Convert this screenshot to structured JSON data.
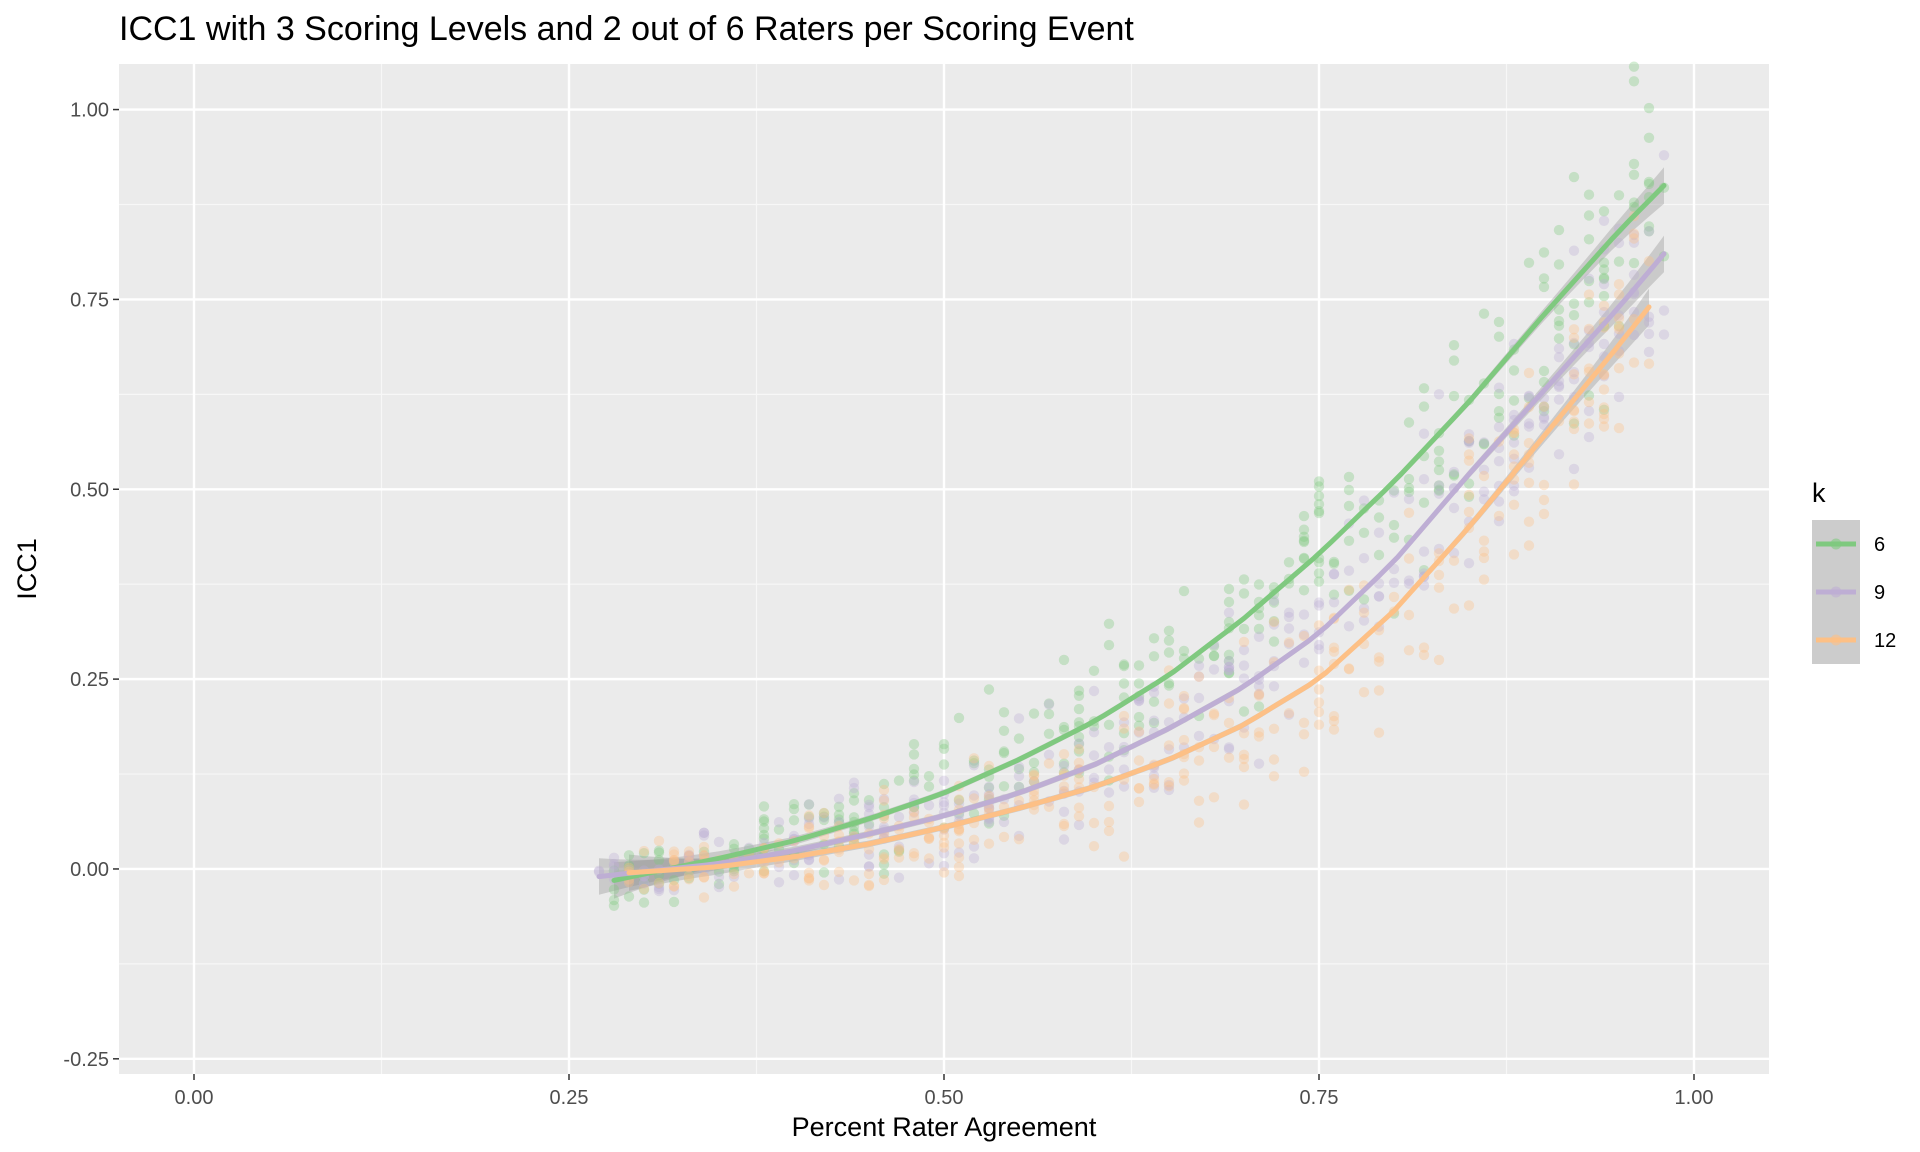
{
  "chart_data": {
    "type": "scatter",
    "title": "ICC1 with 3 Scoring Levels and 2 out of 6 Raters per Scoring Event",
    "xlabel": "Percent Rater Agreement",
    "ylabel": "ICC1",
    "xlim": [
      -0.05,
      1.05
    ],
    "ylim": [
      -0.27,
      1.06
    ],
    "x_ticks": [
      0.0,
      0.25,
      0.5,
      0.75,
      1.0
    ],
    "x_tick_labels": [
      "0.00",
      "0.25",
      "0.50",
      "0.75",
      "1.00"
    ],
    "y_ticks": [
      -0.25,
      0.0,
      0.25,
      0.5,
      0.75,
      1.0
    ],
    "y_tick_labels": [
      "-0.25",
      "0.00",
      "0.25",
      "0.50",
      "0.75",
      "1.00"
    ],
    "grid": true,
    "background": "#ebebeb",
    "point_alpha": 0.35,
    "smoother": "fitted curve with grey confidence band",
    "legend": {
      "title": "k",
      "position": "right",
      "entries": [
        "6",
        "9",
        "12"
      ]
    },
    "series": [
      {
        "name": "6",
        "color": "#7fc97f",
        "fit_x": [
          0.28,
          0.35,
          0.4,
          0.45,
          0.5,
          0.55,
          0.6,
          0.65,
          0.7,
          0.75,
          0.8,
          0.85,
          0.9,
          0.95,
          0.98
        ],
        "fit_y": [
          -0.015,
          0.014,
          0.037,
          0.066,
          0.1,
          0.144,
          0.194,
          0.255,
          0.33,
          0.415,
          0.51,
          0.615,
          0.73,
          0.84,
          0.9
        ],
        "point_x_range": [
          0.28,
          0.98
        ],
        "point_spread": 0.045
      },
      {
        "name": "9",
        "color": "#beaed4",
        "fit_x": [
          0.27,
          0.35,
          0.4,
          0.45,
          0.5,
          0.55,
          0.6,
          0.65,
          0.7,
          0.75,
          0.8,
          0.85,
          0.9,
          0.95,
          0.98
        ],
        "fit_y": [
          -0.01,
          0.007,
          0.024,
          0.046,
          0.07,
          0.1,
          0.137,
          0.185,
          0.24,
          0.31,
          0.405,
          0.52,
          0.63,
          0.74,
          0.81
        ],
        "point_x_range": [
          0.27,
          0.98
        ],
        "point_spread": 0.04
      },
      {
        "name": "12",
        "color": "#fdc086",
        "fit_x": [
          0.29,
          0.35,
          0.4,
          0.45,
          0.5,
          0.55,
          0.6,
          0.65,
          0.7,
          0.75,
          0.8,
          0.85,
          0.9,
          0.95,
          0.97
        ],
        "fit_y": [
          -0.005,
          0.003,
          0.016,
          0.033,
          0.055,
          0.08,
          0.108,
          0.144,
          0.19,
          0.25,
          0.34,
          0.45,
          0.57,
          0.69,
          0.74
        ],
        "point_x_range": [
          0.29,
          0.97
        ],
        "point_spread": 0.04
      }
    ]
  }
}
